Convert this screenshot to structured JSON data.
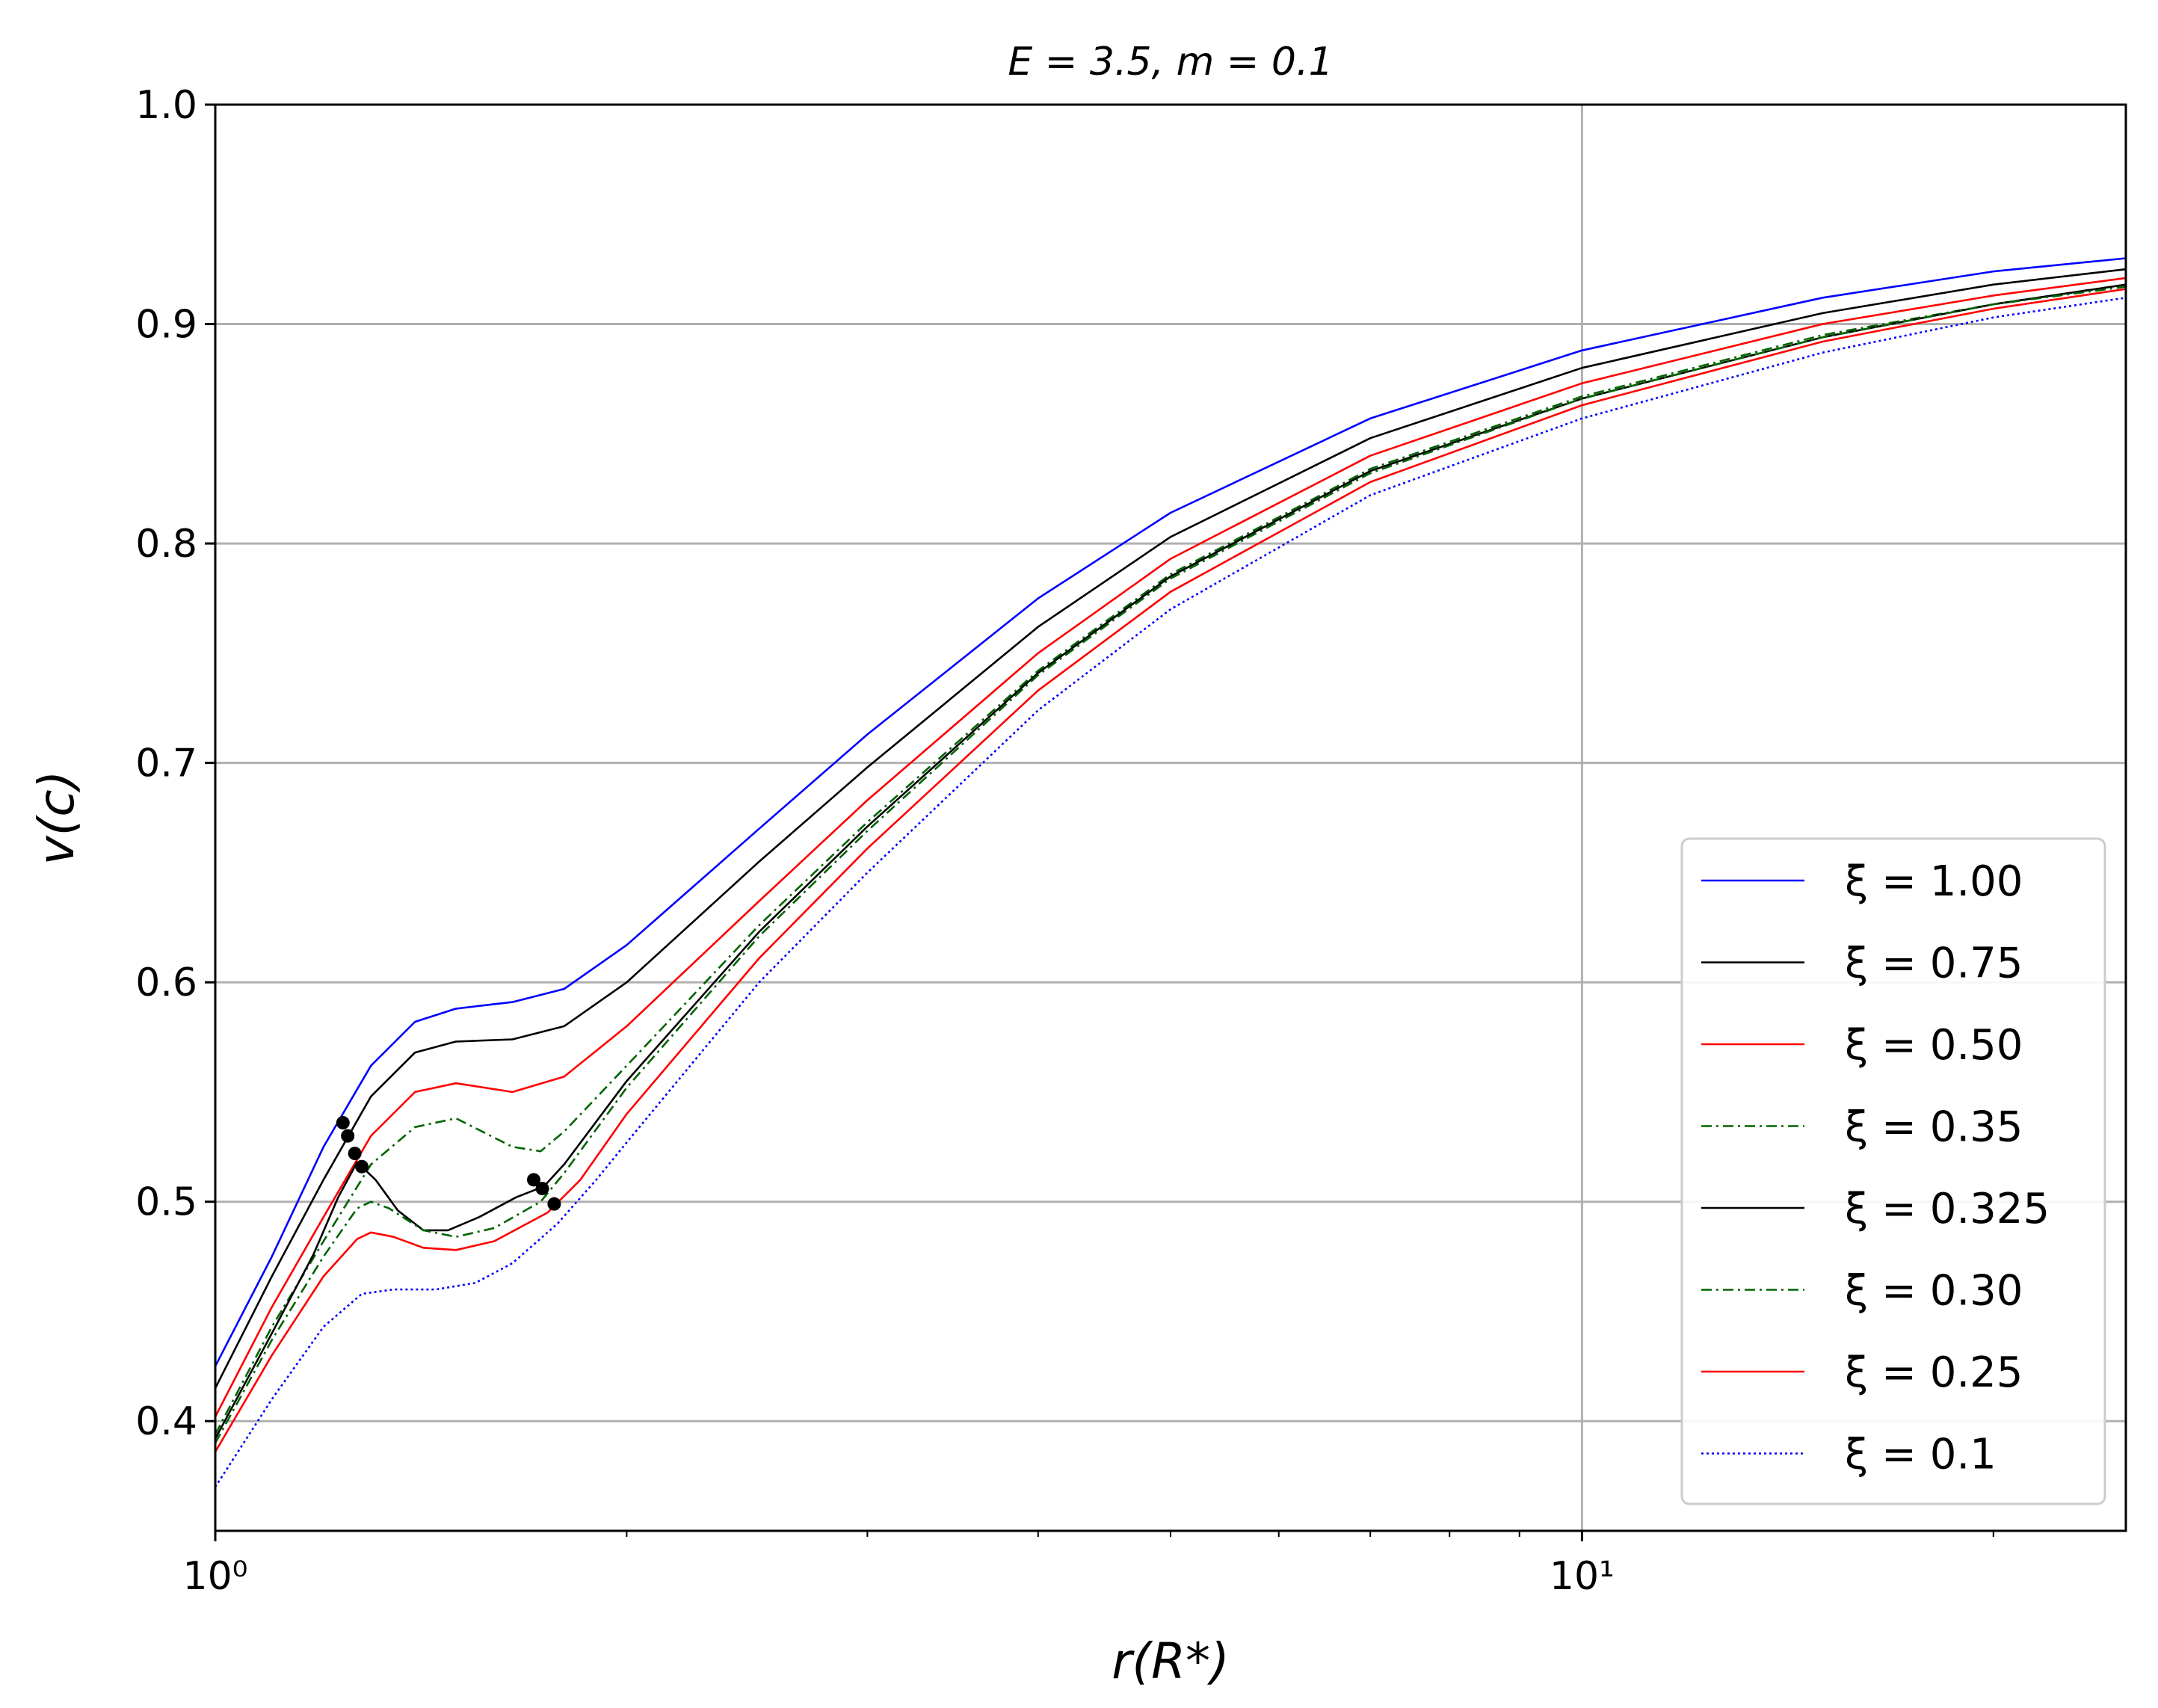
{
  "chart_data": {
    "type": "line",
    "title": "E = 3.5, m = 0.1",
    "xlabel": "r(R*)",
    "ylabel": "v(c)",
    "xscale": "log",
    "xlim": [
      1,
      25
    ],
    "ylim": [
      0.35,
      1.0
    ],
    "grid": true,
    "legend_position": "lower right",
    "x_ticks": [
      {
        "value": 1,
        "label": "10⁰"
      },
      {
        "value": 10,
        "label": "10¹"
      }
    ],
    "y_ticks": [
      {
        "value": 0.4,
        "label": "0.4"
      },
      {
        "value": 0.5,
        "label": "0.5"
      },
      {
        "value": 0.6,
        "label": "0.6"
      },
      {
        "value": 0.7,
        "label": "0.7"
      },
      {
        "value": 0.8,
        "label": "0.8"
      },
      {
        "value": 0.9,
        "label": "0.9"
      },
      {
        "value": 1.0,
        "label": "1.0"
      }
    ],
    "series": [
      {
        "name": "ξ = 1.00",
        "color": "#0000ff",
        "style": "solid",
        "points": [
          [
            1.0,
            0.425
          ],
          [
            1.1,
            0.475
          ],
          [
            1.2,
            0.525
          ],
          [
            1.3,
            0.562
          ],
          [
            1.4,
            0.582
          ],
          [
            1.5,
            0.588
          ],
          [
            1.65,
            0.591
          ],
          [
            1.8,
            0.597
          ],
          [
            2.0,
            0.617
          ],
          [
            2.5,
            0.67
          ],
          [
            3.0,
            0.713
          ],
          [
            4.0,
            0.775
          ],
          [
            5.0,
            0.814
          ],
          [
            7.0,
            0.857
          ],
          [
            10.0,
            0.888
          ],
          [
            15.0,
            0.912
          ],
          [
            20.0,
            0.924
          ],
          [
            25.0,
            0.93
          ]
        ]
      },
      {
        "name": "ξ = 0.75",
        "color": "#000000",
        "style": "solid",
        "points": [
          [
            1.0,
            0.415
          ],
          [
            1.1,
            0.466
          ],
          [
            1.2,
            0.51
          ],
          [
            1.3,
            0.548
          ],
          [
            1.4,
            0.568
          ],
          [
            1.5,
            0.573
          ],
          [
            1.65,
            0.574
          ],
          [
            1.8,
            0.58
          ],
          [
            2.0,
            0.6
          ],
          [
            2.5,
            0.655
          ],
          [
            3.0,
            0.698
          ],
          [
            4.0,
            0.762
          ],
          [
            5.0,
            0.803
          ],
          [
            7.0,
            0.848
          ],
          [
            10.0,
            0.88
          ],
          [
            15.0,
            0.905
          ],
          [
            20.0,
            0.918
          ],
          [
            25.0,
            0.925
          ]
        ]
      },
      {
        "name": "ξ = 0.50",
        "color": "#ff0000",
        "style": "solid",
        "points": [
          [
            1.0,
            0.402
          ],
          [
            1.1,
            0.452
          ],
          [
            1.2,
            0.493
          ],
          [
            1.3,
            0.53
          ],
          [
            1.4,
            0.55
          ],
          [
            1.5,
            0.554
          ],
          [
            1.65,
            0.55
          ],
          [
            1.8,
            0.557
          ],
          [
            2.0,
            0.58
          ],
          [
            2.5,
            0.637
          ],
          [
            3.0,
            0.683
          ],
          [
            4.0,
            0.75
          ],
          [
            5.0,
            0.793
          ],
          [
            7.0,
            0.84
          ],
          [
            10.0,
            0.873
          ],
          [
            15.0,
            0.9
          ],
          [
            20.0,
            0.913
          ],
          [
            25.0,
            0.921
          ]
        ]
      },
      {
        "name": "ξ = 0.35",
        "color": "#006400",
        "style": "dashdot",
        "points": [
          [
            1.0,
            0.394
          ],
          [
            1.1,
            0.443
          ],
          [
            1.2,
            0.482
          ],
          [
            1.3,
            0.517
          ],
          [
            1.4,
            0.534
          ],
          [
            1.5,
            0.538
          ],
          [
            1.65,
            0.525
          ],
          [
            1.73,
            0.523
          ],
          [
            1.8,
            0.532
          ],
          [
            2.0,
            0.562
          ],
          [
            2.5,
            0.626
          ],
          [
            3.0,
            0.673
          ],
          [
            4.0,
            0.742
          ],
          [
            5.0,
            0.786
          ],
          [
            7.0,
            0.834
          ],
          [
            10.0,
            0.867
          ],
          [
            15.0,
            0.895
          ],
          [
            20.0,
            0.909
          ],
          [
            25.0,
            0.918
          ]
        ]
      },
      {
        "name": "ξ = 0.325",
        "color": "#000000",
        "style": "solid",
        "points": [
          [
            1.0,
            0.392
          ],
          [
            1.1,
            0.44
          ],
          [
            1.18,
            0.476
          ],
          [
            1.23,
            0.502
          ],
          [
            1.27,
            0.518
          ],
          [
            1.31,
            0.51
          ],
          [
            1.36,
            0.496
          ],
          [
            1.42,
            0.487
          ],
          [
            1.48,
            0.487
          ],
          [
            1.56,
            0.493
          ],
          [
            1.66,
            0.502
          ],
          [
            1.74,
            0.507
          ],
          [
            1.8,
            0.517
          ],
          [
            2.0,
            0.555
          ],
          [
            2.5,
            0.623
          ],
          [
            3.0,
            0.671
          ],
          [
            4.0,
            0.741
          ],
          [
            5.0,
            0.785
          ],
          [
            7.0,
            0.833
          ],
          [
            10.0,
            0.866
          ],
          [
            15.0,
            0.894
          ],
          [
            20.0,
            0.909
          ],
          [
            25.0,
            0.918
          ]
        ]
      },
      {
        "name": "ξ = 0.30",
        "color": "#006400",
        "style": "dashdot",
        "points": [
          [
            1.0,
            0.39
          ],
          [
            1.1,
            0.437
          ],
          [
            1.2,
            0.475
          ],
          [
            1.27,
            0.497
          ],
          [
            1.3,
            0.5
          ],
          [
            1.34,
            0.497
          ],
          [
            1.42,
            0.487
          ],
          [
            1.5,
            0.484
          ],
          [
            1.6,
            0.488
          ],
          [
            1.73,
            0.5
          ],
          [
            1.8,
            0.513
          ],
          [
            2.0,
            0.552
          ],
          [
            2.5,
            0.621
          ],
          [
            3.0,
            0.669
          ],
          [
            4.0,
            0.74
          ],
          [
            5.0,
            0.784
          ],
          [
            7.0,
            0.832
          ],
          [
            10.0,
            0.866
          ],
          [
            15.0,
            0.894
          ],
          [
            20.0,
            0.909
          ],
          [
            25.0,
            0.917
          ]
        ]
      },
      {
        "name": "ξ = 0.25",
        "color": "#ff0000",
        "style": "solid",
        "points": [
          [
            1.0,
            0.386
          ],
          [
            1.1,
            0.43
          ],
          [
            1.2,
            0.466
          ],
          [
            1.27,
            0.483
          ],
          [
            1.3,
            0.486
          ],
          [
            1.35,
            0.484
          ],
          [
            1.42,
            0.479
          ],
          [
            1.5,
            0.478
          ],
          [
            1.6,
            0.482
          ],
          [
            1.75,
            0.495
          ],
          [
            1.85,
            0.51
          ],
          [
            2.0,
            0.54
          ],
          [
            2.5,
            0.611
          ],
          [
            3.0,
            0.661
          ],
          [
            4.0,
            0.733
          ],
          [
            5.0,
            0.778
          ],
          [
            7.0,
            0.828
          ],
          [
            10.0,
            0.863
          ],
          [
            15.0,
            0.892
          ],
          [
            20.0,
            0.907
          ],
          [
            25.0,
            0.916
          ]
        ]
      },
      {
        "name": "ξ = 0.1",
        "color": "#0000ff",
        "style": "dotted",
        "points": [
          [
            1.0,
            0.37
          ],
          [
            1.1,
            0.41
          ],
          [
            1.2,
            0.443
          ],
          [
            1.28,
            0.458
          ],
          [
            1.35,
            0.46
          ],
          [
            1.45,
            0.46
          ],
          [
            1.55,
            0.463
          ],
          [
            1.65,
            0.472
          ],
          [
            1.78,
            0.49
          ],
          [
            1.9,
            0.51
          ],
          [
            2.0,
            0.527
          ],
          [
            2.5,
            0.6
          ],
          [
            3.0,
            0.65
          ],
          [
            4.0,
            0.724
          ],
          [
            5.0,
            0.77
          ],
          [
            7.0,
            0.822
          ],
          [
            10.0,
            0.857
          ],
          [
            15.0,
            0.887
          ],
          [
            20.0,
            0.903
          ],
          [
            25.0,
            0.912
          ]
        ]
      }
    ],
    "markers": [
      {
        "x": 1.24,
        "y": 0.536
      },
      {
        "x": 1.25,
        "y": 0.53
      },
      {
        "x": 1.265,
        "y": 0.522
      },
      {
        "x": 1.28,
        "y": 0.516
      },
      {
        "x": 1.71,
        "y": 0.51
      },
      {
        "x": 1.735,
        "y": 0.506
      },
      {
        "x": 1.77,
        "y": 0.499
      }
    ]
  }
}
